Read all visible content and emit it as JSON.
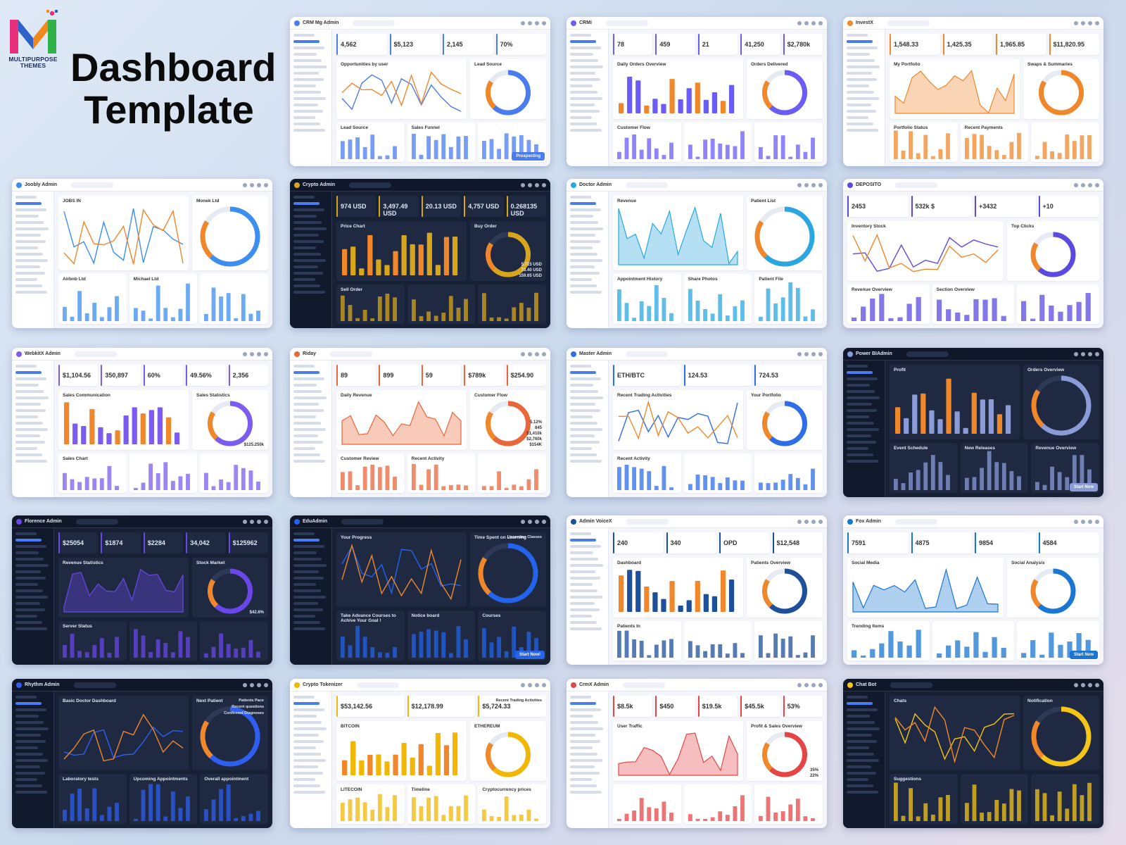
{
  "hero": {
    "brand_text": "MULTIPURPOSE THEMES",
    "title_line1": "Dashboard",
    "title_line2": "Template"
  },
  "thumbnails": [
    {
      "brand": "CRM Mg Admin",
      "theme": "light",
      "accent": "#4a7cf0",
      "stats": [
        "4,562",
        "$5,123",
        "2,145",
        "70%"
      ],
      "card_titles": [
        "Opportunities by user",
        "Lead Source",
        "Lead Source",
        "Sales Funnel"
      ],
      "badge": "Prospecting"
    },
    {
      "brand": "CRMi",
      "theme": "light",
      "accent": "#6a5cf4",
      "stats": [
        "78",
        "459",
        "21",
        "41,250",
        "$2,780k"
      ],
      "card_titles": [
        "Daily Orders Overview",
        "Orders Delivered",
        "Customer Flow"
      ]
    },
    {
      "brand": "InvestX",
      "theme": "light",
      "accent": "#f0872b",
      "stats": [
        "1,548.33",
        "1,425.35",
        "1,965.85",
        "$11,820.95"
      ],
      "card_titles": [
        "My Portfolio",
        "Swaps & Summaries",
        "Portfolio Status",
        "Recent Payments"
      ]
    },
    {
      "brand": "Joobly Admin",
      "theme": "light",
      "accent": "#3c8ef0",
      "stats": [],
      "card_titles": [
        "JOBS IN",
        "Monek Ltd",
        "Airbnb Ltd",
        "Michael Ltd"
      ]
    },
    {
      "brand": "Crypto Admin",
      "theme": "dark",
      "accent": "#d8a61c",
      "stats": [
        "974 USD",
        "3,497.49 USD",
        "20.13 USD",
        "4,757 USD",
        "0.268135 USD",
        "159.65 USD",
        "73.40 USD",
        "5.715 USD"
      ],
      "card_titles": [
        "Price Chart",
        "Buy Order",
        "Sell Order"
      ]
    },
    {
      "brand": "Doctor Admin",
      "theme": "light",
      "accent": "#2aa7e0",
      "stats": [],
      "card_titles": [
        "Revenue",
        "Patient List",
        "Appointment History",
        "Share Photos",
        "Patient File"
      ]
    },
    {
      "brand": "DEPOSITO",
      "theme": "light",
      "accent": "#5b4ae0",
      "stats": [
        "2453",
        "532k $",
        "+3432",
        "+10"
      ],
      "card_titles": [
        "Inventory Stock",
        "Top Clicks",
        "Revenue Overview",
        "Section Overview"
      ]
    },
    {
      "brand": "WebkitX Admin",
      "theme": "light",
      "accent": "#7c5cf0",
      "stats": [
        "$1,104.56",
        "350,897",
        "60%",
        "49.56%",
        "2,356",
        "$125.250k"
      ],
      "card_titles": [
        "Sales Communication",
        "Sales Statistics",
        "Sales Chart"
      ]
    },
    {
      "brand": "Riday",
      "theme": "light",
      "accent": "#e9663a",
      "stats": [
        "89",
        "899",
        "59",
        "$789k",
        "$254.90",
        "$154K",
        "$2,760k",
        "$1,410k",
        "845",
        "5.12%"
      ],
      "card_titles": [
        "Daily Revenue",
        "Customer Flow",
        "Customer Review",
        "Recent Activity"
      ]
    },
    {
      "brand": "Master Admin",
      "theme": "light",
      "accent": "#2e6de8",
      "stats": [
        "ETH/BTC",
        "124.53",
        "724.53"
      ],
      "card_titles": [
        "Recent Trading Activities",
        "Your Portfolio",
        "Recent Activity"
      ]
    },
    {
      "brand": "Power BIAdmin",
      "theme": "dark",
      "accent": "#8a9bd8",
      "stats": [],
      "card_titles": [
        "Profit",
        "Orders Overview",
        "Event Schedule",
        "New Releases",
        "Revenue Overview"
      ],
      "badge": "Start Now"
    },
    {
      "brand": "Florence Admin",
      "theme": "dark",
      "accent": "#6a47e8",
      "stats": [
        "$25054",
        "$1874",
        "$2284",
        "34,042",
        "$125962",
        "$42.6%"
      ],
      "card_titles": [
        "Revenue Statistics",
        "Stock Market",
        "Server Status"
      ]
    },
    {
      "brand": "EduAdmin",
      "theme": "dark",
      "accent": "#2463eb",
      "stats": [],
      "card_titles": [
        "Your Progress",
        "Time Spent on Learning",
        "Take Advance Courses to Achive Your Goal !",
        "Notice board",
        "Courses",
        "Upcoming Classes"
      ],
      "badge": "Start Now!"
    },
    {
      "brand": "Admin VoiceX",
      "theme": "light",
      "accent": "#1e4f9a",
      "stats": [
        "240",
        "340",
        "OPD",
        "$12,548"
      ],
      "card_titles": [
        "Dashboard",
        "Patients Overview",
        "Patients In"
      ]
    },
    {
      "brand": "Fox Admin",
      "theme": "light",
      "accent": "#1976d2",
      "stats": [
        "7591",
        "4875",
        "9854",
        "4584"
      ],
      "card_titles": [
        "Social Media",
        "Social Analysis",
        "Trending Items"
      ],
      "badge": "Start Now"
    },
    {
      "brand": "Rhythm Admin",
      "theme": "dark",
      "accent": "#2f5ff0",
      "stats": [],
      "card_titles": [
        "Basic Doctor Dashboard",
        "Next Patient",
        "Laboratory tests",
        "Upcoming Appointments",
        "Overall appointment",
        "Patients Pace",
        "Recent questions",
        "Confirmed Diagnoses"
      ]
    },
    {
      "brand": "Crypto Tokenizer",
      "theme": "light",
      "accent": "#f2b705",
      "stats": [
        "$53,142.56",
        "$12,178.99",
        "$5,724.33"
      ],
      "card_titles": [
        "BITCOIN",
        "ETHEREUM",
        "LITECOIN",
        "Timeline",
        "Cryptocurrency prices",
        "Recent Trading Activities"
      ]
    },
    {
      "brand": "CrmX Admin",
      "theme": "light",
      "accent": "#e64545",
      "stats": [
        "$8.5k",
        "$450",
        "$19.5k",
        "$45.5k",
        "53%",
        "22%",
        "35%"
      ],
      "card_titles": [
        "User Traffic",
        "Profit & Sales Overview"
      ]
    },
    {
      "brand": "Chat Bot",
      "theme": "dark",
      "accent": "#f5c518",
      "stats": [],
      "card_titles": [
        "Chats",
        "Notification",
        "Suggestions"
      ]
    }
  ],
  "colors": {
    "logo_pink": "#e8317c",
    "logo_blue": "#2d62c9",
    "logo_orange": "#f08a1c",
    "logo_green": "#2fb24a"
  }
}
